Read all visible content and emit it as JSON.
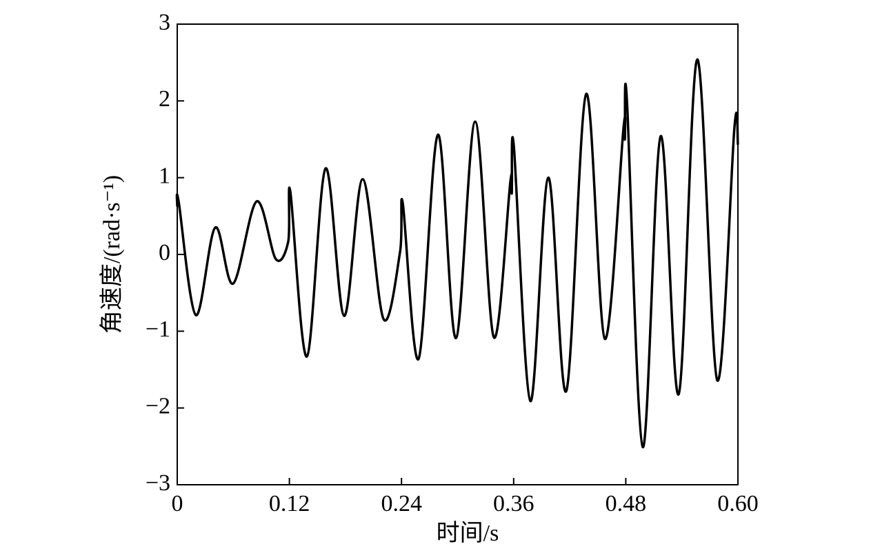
{
  "chart_data": {
    "type": "line",
    "x_label": "时间/s",
    "y_label": "角速度/(rad·s⁻¹)",
    "x": [
      0,
      0.0015,
      0.0199,
      0.0406,
      0.0598,
      0.0849,
      0.1055,
      0.1188,
      0.121,
      0.1387,
      0.1587,
      0.1786,
      0.1985,
      0.2207,
      0.2384,
      0.2413,
      0.2583,
      0.279,
      0.2982,
      0.3188,
      0.3388,
      0.3565,
      0.358,
      0.3602,
      0.3779,
      0.3971,
      0.4163,
      0.4376,
      0.4576,
      0.4775,
      0.479,
      0.4812,
      0.4982,
      0.5173,
      0.5366,
      0.5565,
      0.5779,
      0.5963,
      0.6
    ],
    "series": [
      {
        "name": "角速度",
        "color": "#000000",
        "values": [
          0.62,
          0.69,
          -0.79,
          0.35,
          -0.38,
          0.69,
          -0.06,
          0.17,
          0.82,
          -1.33,
          1.12,
          -0.8,
          0.98,
          -0.84,
          0.03,
          0.67,
          -1.36,
          1.56,
          -1.09,
          1.73,
          -1.08,
          0.95,
          0.8,
          1.41,
          -1.91,
          1.0,
          -1.78,
          2.09,
          -1.1,
          1.64,
          1.5,
          2.01,
          -2.51,
          1.54,
          -1.82,
          2.54,
          -1.64,
          1.66,
          1.43
        ]
      }
    ],
    "xlim": [
      0,
      0.6
    ],
    "xticks": [
      0,
      0.12,
      0.24,
      0.36,
      0.48,
      {
        "value": 0.6,
        "label": "0.60"
      }
    ],
    "ylim": [
      -3,
      3
    ],
    "yticks": [
      {
        "value": -3,
        "label": "−3"
      },
      {
        "value": -2,
        "label": "−2"
      },
      {
        "value": -1,
        "label": "−1"
      },
      0,
      1,
      2,
      3
    ],
    "grid": false
  }
}
